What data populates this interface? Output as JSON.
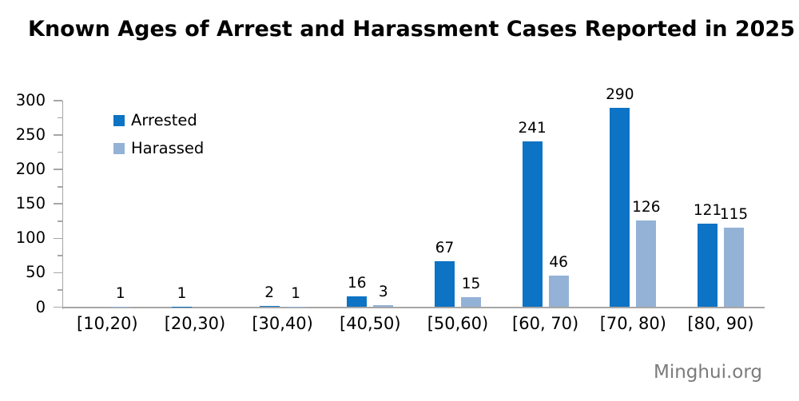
{
  "title": "Known Ages of Arrest and Harassment Cases Reported in 2025",
  "watermark": "Minghui.org",
  "colors": {
    "arrested": "#0d73c4",
    "harassed": "#94b2d6",
    "axis": "#a6a6a6",
    "watermark": "#7b7b7b",
    "title": "#000000"
  },
  "legend": {
    "position": "top-left",
    "items": [
      {
        "label": "Arrested",
        "color": "#0d73c4"
      },
      {
        "label": "Harassed",
        "color": "#94b2d6"
      }
    ]
  },
  "chart_data": {
    "type": "bar",
    "title": "Known Ages of Arrest and Harassment Cases Reported in 2025",
    "categories": [
      "[10,20)",
      "[20,30)",
      "[30,40)",
      "[40,50)",
      "[50,60)",
      "[60, 70)",
      "[70, 80)",
      "[80, 90)"
    ],
    "series": [
      {
        "name": "Arrested",
        "color": "#0d73c4",
        "values": [
          null,
          1,
          2,
          16,
          67,
          241,
          290,
          121
        ]
      },
      {
        "name": "Harassed",
        "color": "#94b2d6",
        "values": [
          1,
          null,
          1,
          3,
          15,
          46,
          126,
          115
        ]
      }
    ],
    "xlabel": "",
    "ylabel": "",
    "ylim": [
      0,
      300
    ],
    "yticks": [
      0,
      50,
      100,
      150,
      200,
      250,
      300
    ],
    "minor_ticks": [
      25,
      75,
      125,
      175,
      225,
      275
    ],
    "grid": false,
    "data_labels": true,
    "legend_position": "top-left"
  }
}
